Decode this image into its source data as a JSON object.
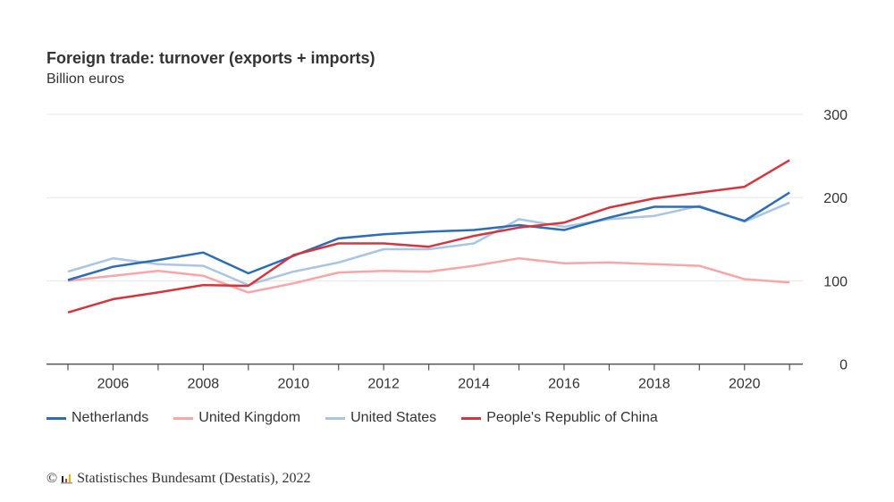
{
  "chart_data": {
    "type": "line",
    "title": "Foreign trade: turnover (exports + imports)",
    "subtitle": "Billion euros",
    "x": [
      2005,
      2006,
      2007,
      2008,
      2009,
      2010,
      2011,
      2012,
      2013,
      2014,
      2015,
      2016,
      2017,
      2018,
      2019,
      2020,
      2021
    ],
    "x_tick_labels": [
      "2006",
      "2008",
      "2010",
      "2012",
      "2014",
      "2016",
      "2018",
      "2020"
    ],
    "y_tick_labels": [
      "0",
      "100",
      "200",
      "300"
    ],
    "ylim": [
      0,
      300
    ],
    "xlim": [
      2004.5,
      2021.3
    ],
    "grid": true,
    "y_axis_side": "right",
    "legend_placement": "bottom",
    "series": [
      {
        "name": "Netherlands",
        "color": "#2d6db4",
        "values": [
          101,
          117,
          125,
          134,
          109,
          130,
          151,
          156,
          159,
          161,
          167,
          161,
          176,
          189,
          189,
          172,
          206
        ]
      },
      {
        "name": "United Kingdom",
        "color": "#f9a6a9",
        "values": [
          100,
          106,
          112,
          106,
          86,
          97,
          110,
          112,
          111,
          118,
          127,
          121,
          122,
          120,
          118,
          102,
          98
        ]
      },
      {
        "name": "United States",
        "color": "#a9c5e3",
        "values": [
          111,
          127,
          120,
          118,
          95,
          111,
          122,
          138,
          138,
          145,
          174,
          165,
          174,
          178,
          190,
          171,
          194
        ]
      },
      {
        "name": "People's Republic of China",
        "color": "#d3363f",
        "values": [
          62,
          78,
          86,
          95,
          94,
          131,
          145,
          145,
          141,
          154,
          164,
          170,
          188,
          199,
          206,
          213,
          245
        ]
      }
    ]
  },
  "footer": {
    "source": "Statistisches Bundesamt (Destatis), 2022",
    "copyright": "©"
  }
}
